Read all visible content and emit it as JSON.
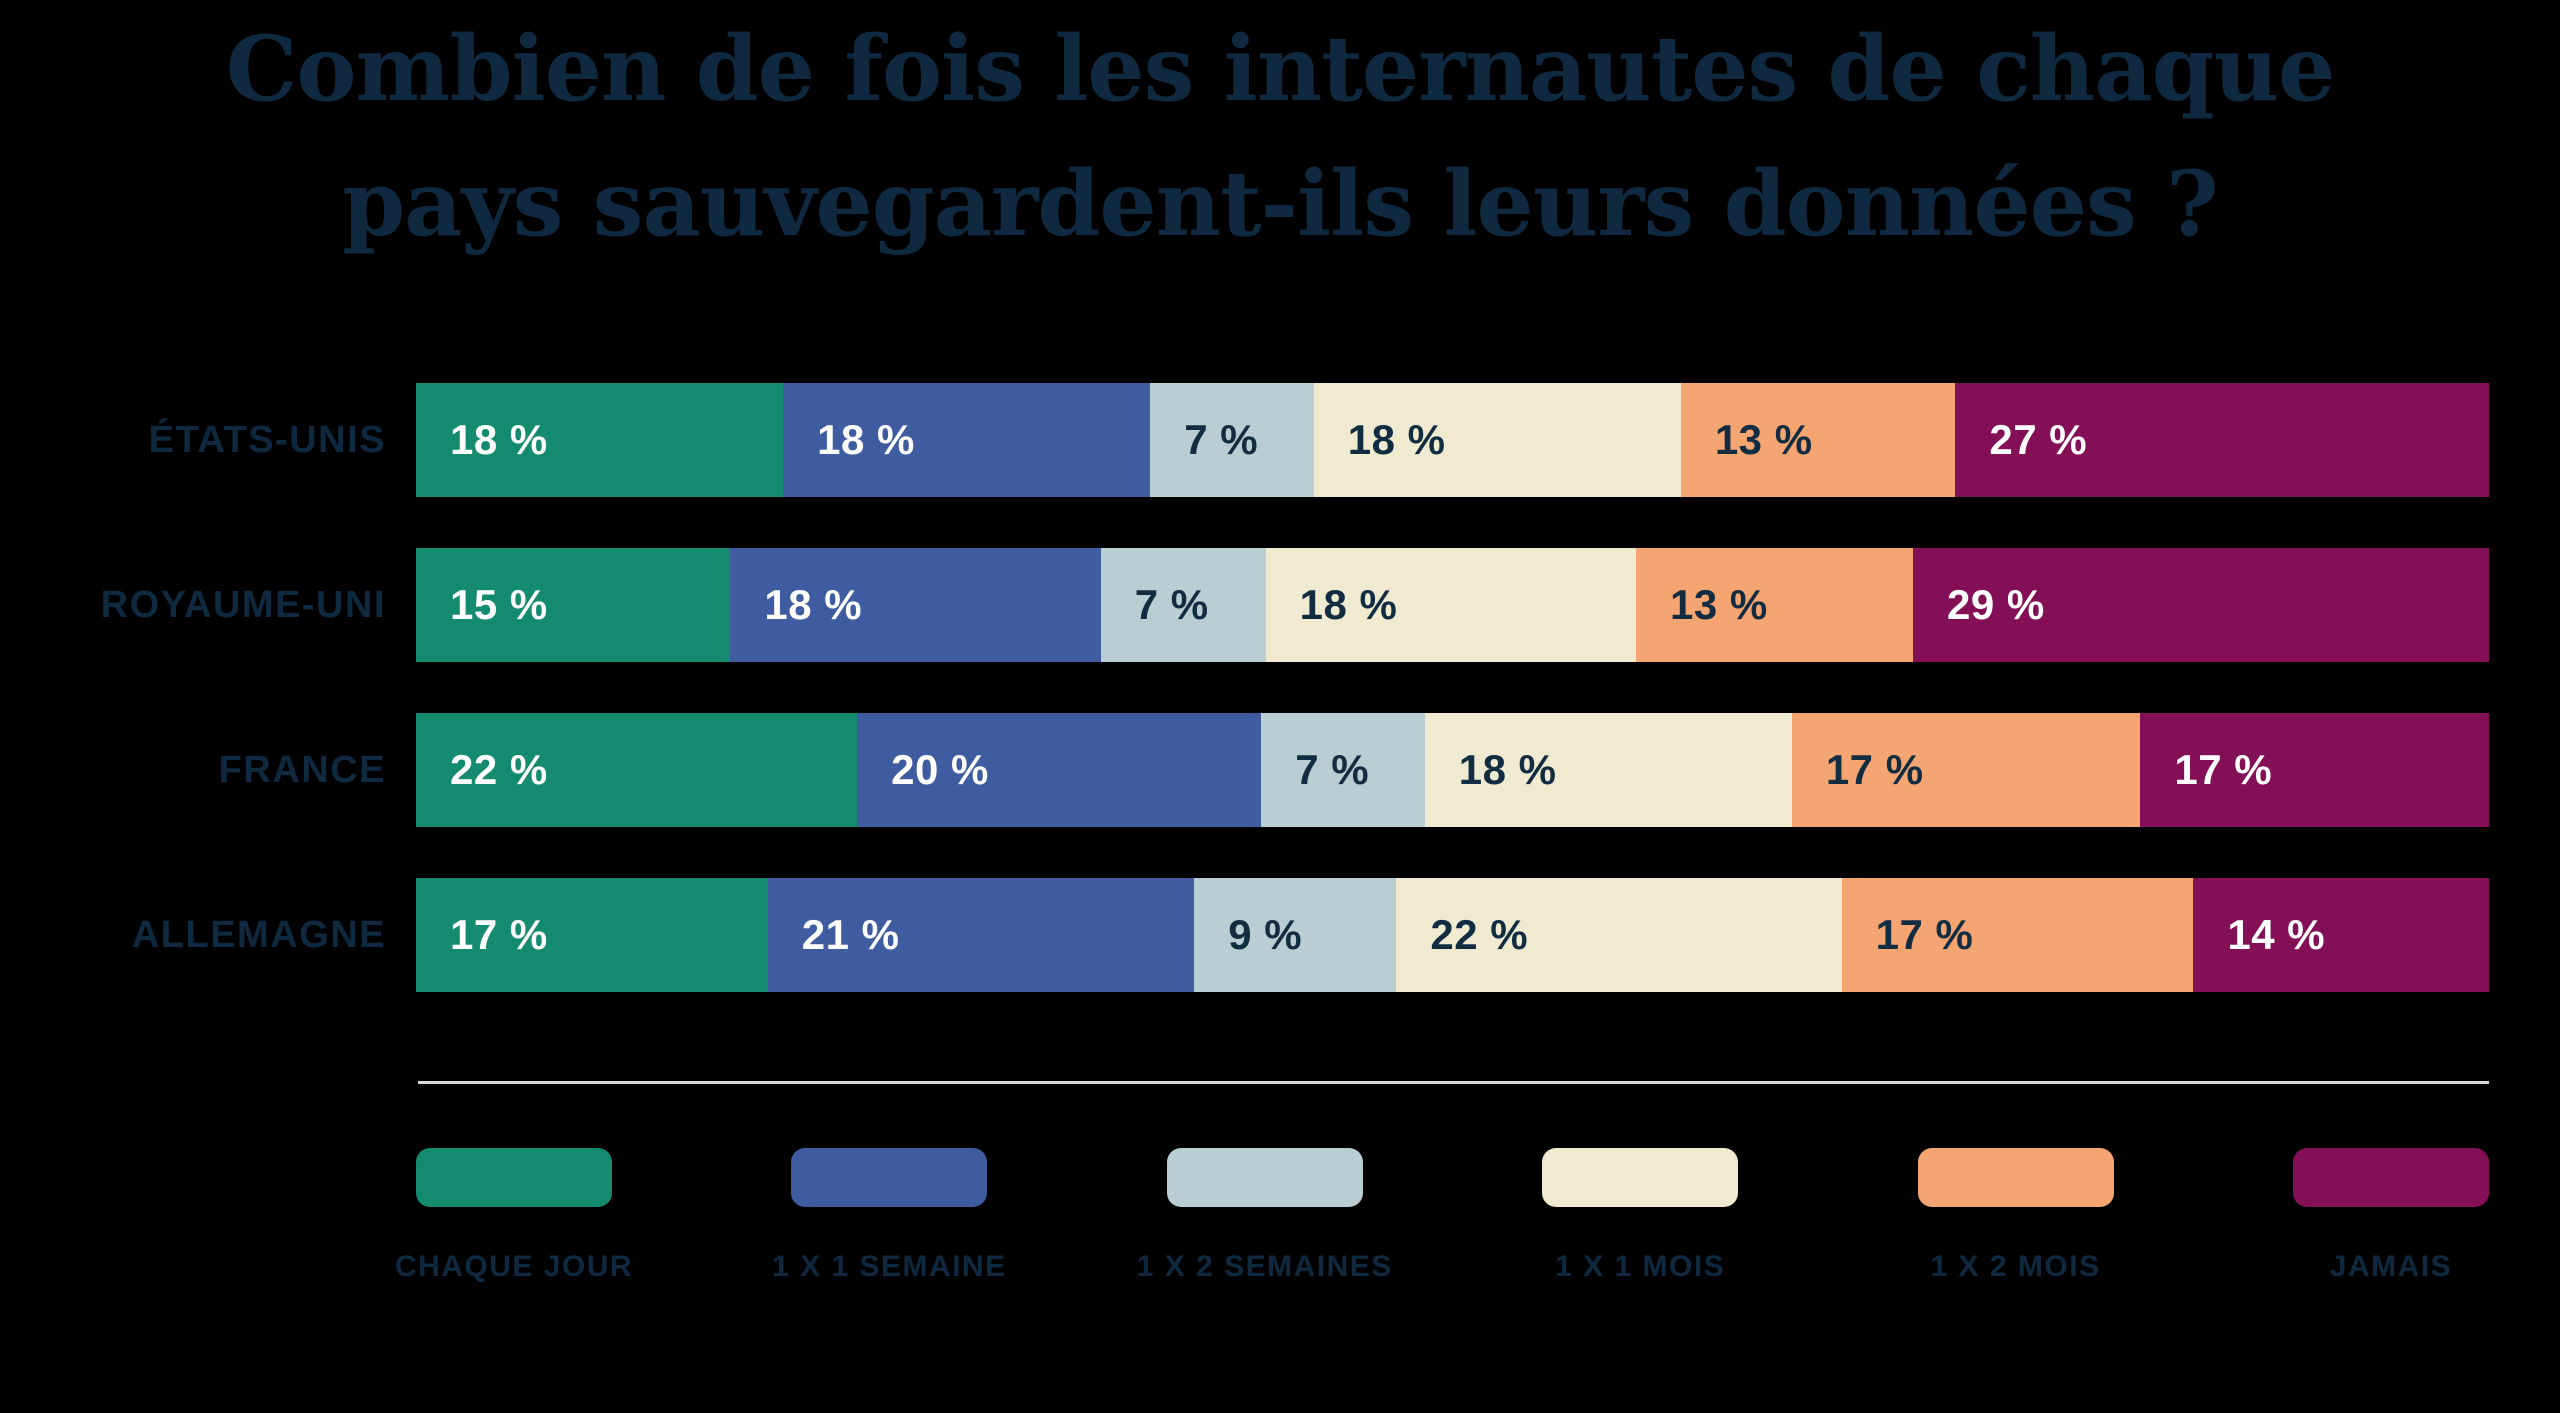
{
  "header": {
    "line1": "Combien de fois les internautes de chaque",
    "line2": "pays sauvegardent-ils leurs données ?"
  },
  "chart_data": {
    "type": "bar",
    "orientation": "horizontal_stacked",
    "title": "Combien de fois les internautes de chaque pays sauvegardent-ils leurs données ?",
    "categories": [
      "ÉTATS-UNIS",
      "ROYAUME-UNI",
      "FRANCE",
      "ALLEMAGNE"
    ],
    "series": [
      {
        "name": "CHAQUE JOUR",
        "color": "#148A6E",
        "label_color": "#FFFFFF",
        "values": [
          18,
          15,
          22,
          17
        ]
      },
      {
        "name": "1 X 1 SEMAINE",
        "color": "#3E5C9F",
        "label_color": "#FFFFFF",
        "values": [
          18,
          18,
          20,
          21
        ]
      },
      {
        "name": "1 X 2 SEMAINES",
        "color": "#B8CED3",
        "label_color": "#122C42",
        "values": [
          7,
          7,
          7,
          9
        ]
      },
      {
        "name": "1 X 1 MOIS",
        "color": "#F0EAD1",
        "label_color": "#122C42",
        "values": [
          18,
          18,
          18,
          22
        ]
      },
      {
        "name": "1 X 2 MOIS",
        "color": "#F5A571",
        "label_color": "#122C42",
        "values": [
          13,
          13,
          17,
          17
        ]
      },
      {
        "name": "JAMAIS",
        "color": "#831056",
        "label_color": "#FFFFFF",
        "values": [
          27,
          29,
          17,
          14
        ]
      }
    ],
    "value_suffix": " %",
    "x_range": [
      0,
      100
    ],
    "grid": false,
    "legend_position": "bottom"
  },
  "colors": {
    "background": "#000000",
    "ink": "#0F2A40",
    "divider": "#D6D6D4"
  }
}
